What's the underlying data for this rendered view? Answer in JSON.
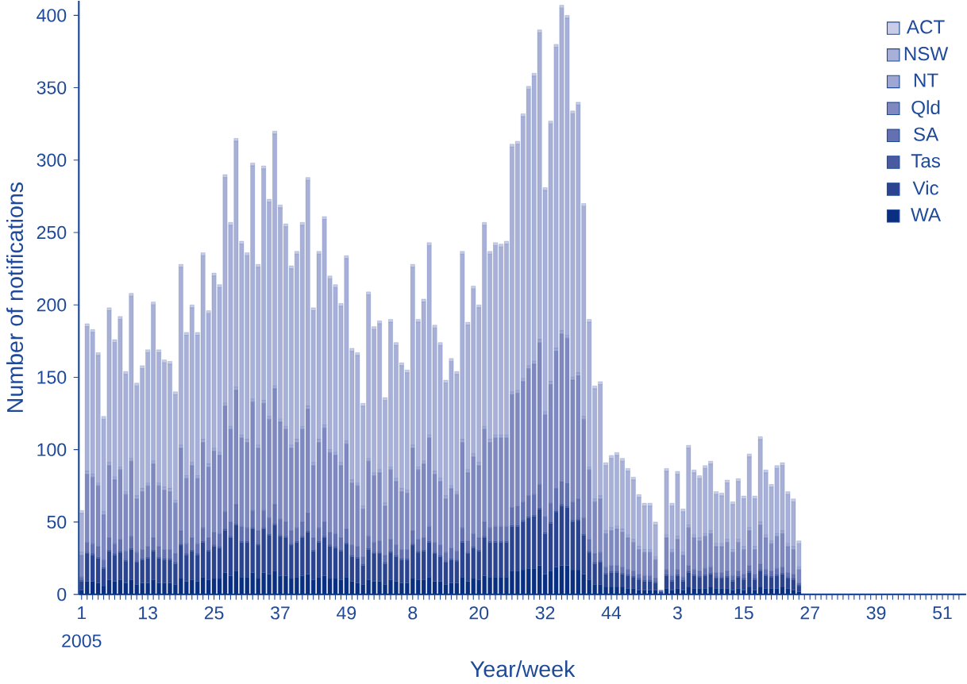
{
  "chart_data": {
    "type": "bar",
    "stacked": true,
    "xlabel": "Year/week",
    "ylabel": "Number of notifications",
    "annotations": [
      "2005"
    ],
    "legend": "top right",
    "ylim": [
      0,
      410
    ],
    "yticks": [
      0,
      50,
      100,
      150,
      200,
      250,
      300,
      350,
      400
    ],
    "categories": [
      "1",
      null,
      null,
      null,
      null,
      null,
      null,
      null,
      null,
      null,
      null,
      null,
      "13",
      null,
      null,
      null,
      null,
      null,
      null,
      null,
      null,
      null,
      null,
      null,
      "25",
      null,
      null,
      null,
      null,
      null,
      null,
      null,
      null,
      null,
      null,
      null,
      "37",
      null,
      null,
      null,
      null,
      null,
      null,
      null,
      null,
      null,
      null,
      null,
      "49",
      null,
      null,
      null,
      null,
      null,
      null,
      null,
      null,
      null,
      null,
      null,
      "8",
      null,
      null,
      null,
      null,
      null,
      null,
      null,
      null,
      null,
      null,
      null,
      "20",
      null,
      null,
      null,
      null,
      null,
      null,
      null,
      null,
      null,
      null,
      null,
      "32",
      null,
      null,
      null,
      null,
      null,
      null,
      null,
      null,
      null,
      null,
      null,
      "44",
      null,
      null,
      null,
      null,
      null,
      null,
      null,
      null,
      null,
      null,
      null,
      "3",
      null,
      null,
      null,
      null,
      null,
      null,
      null,
      null,
      null,
      null,
      null,
      "15",
      null,
      null,
      null,
      null,
      null,
      null,
      null,
      null,
      null,
      null,
      null,
      "27",
      null,
      null,
      null,
      null,
      null,
      null,
      null,
      null,
      null,
      null,
      null,
      "39",
      null,
      null,
      null,
      null,
      null,
      null,
      null,
      null,
      null,
      null,
      null,
      "51",
      null,
      null,
      null
    ],
    "series": [
      {
        "name": "WA",
        "color": "#0a2f80",
        "values": [
          3,
          9,
          9,
          8,
          6,
          10,
          9,
          10,
          8,
          10,
          7,
          8,
          8,
          10,
          8,
          8,
          8,
          7,
          11,
          9,
          10,
          9,
          12,
          10,
          11,
          11,
          15,
          13,
          16,
          12,
          12,
          15,
          11,
          15,
          14,
          16,
          13,
          13,
          11,
          12,
          13,
          14,
          10,
          12,
          13,
          11,
          11,
          10,
          12,
          9,
          8,
          7,
          10,
          9,
          9,
          7,
          10,
          9,
          8,
          8,
          11,
          10,
          10,
          12,
          9,
          9,
          7,
          8,
          8,
          12,
          9,
          11,
          10,
          13,
          12,
          12,
          12,
          12,
          16,
          16,
          17,
          18,
          18,
          20,
          14,
          16,
          19,
          20,
          20,
          17,
          17,
          14,
          10,
          7,
          7,
          5,
          5,
          5,
          5,
          4,
          4,
          3,
          3,
          3,
          3,
          1,
          4,
          3,
          4,
          3,
          5,
          4,
          4,
          4,
          5,
          4,
          4,
          4,
          3,
          4,
          3,
          5,
          3,
          5,
          4,
          4,
          4,
          5,
          4,
          3,
          2,
          null,
          null,
          null,
          null,
          null,
          null,
          null,
          null,
          null,
          null,
          null,
          null,
          null,
          null,
          null,
          null,
          null,
          null,
          null,
          null,
          null,
          null,
          null,
          null,
          null,
          null,
          null,
          null,
          null
        ]
      },
      {
        "name": "Vic",
        "color": "#2c4490",
        "values": [
          6,
          19,
          18,
          17,
          12,
          20,
          18,
          19,
          15,
          21,
          15,
          16,
          17,
          20,
          17,
          16,
          16,
          14,
          23,
          18,
          20,
          18,
          24,
          20,
          22,
          21,
          29,
          26,
          32,
          24,
          24,
          30,
          23,
          30,
          27,
          32,
          27,
          26,
          23,
          24,
          26,
          29,
          20,
          24,
          26,
          22,
          21,
          20,
          23,
          17,
          17,
          13,
          21,
          19,
          19,
          14,
          19,
          17,
          16,
          16,
          23,
          19,
          20,
          24,
          19,
          17,
          15,
          16,
          15,
          24,
          19,
          21,
          20,
          26,
          24,
          24,
          24,
          24,
          31,
          31,
          33,
          35,
          36,
          39,
          28,
          33,
          38,
          41,
          40,
          33,
          34,
          27,
          19,
          14,
          15,
          9,
          10,
          10,
          9,
          9,
          8,
          7,
          6,
          6,
          5,
          1,
          9,
          6,
          9,
          6,
          10,
          9,
          8,
          9,
          9,
          7,
          7,
          8,
          6,
          8,
          7,
          10,
          7,
          11,
          9,
          8,
          9,
          9,
          7,
          7,
          4,
          null,
          null,
          null,
          null,
          null,
          null,
          null,
          null,
          null,
          null,
          null,
          null,
          null,
          null,
          null,
          null,
          null,
          null,
          null,
          null,
          null,
          null,
          null,
          null,
          null,
          null,
          null,
          null,
          null
        ]
      },
      {
        "name": "Tas",
        "color": "#4a5aa0",
        "values": [
          1,
          1,
          1,
          1,
          1,
          1,
          1,
          1,
          1,
          1,
          1,
          1,
          1,
          1,
          1,
          1,
          1,
          1,
          1,
          1,
          1,
          1,
          1,
          1,
          1,
          1,
          1,
          1,
          1,
          1,
          1,
          1,
          1,
          1,
          1,
          1,
          1,
          1,
          1,
          1,
          1,
          1,
          1,
          1,
          1,
          1,
          1,
          1,
          1,
          1,
          1,
          1,
          1,
          1,
          1,
          1,
          1,
          1,
          1,
          1,
          1,
          1,
          1,
          1,
          1,
          1,
          1,
          1,
          1,
          1,
          1,
          1,
          1,
          1,
          1,
          1,
          1,
          1,
          1,
          1,
          1,
          1,
          1,
          1,
          1,
          1,
          1,
          1,
          1,
          1,
          1,
          1,
          1,
          1,
          1,
          1,
          1,
          1,
          1,
          1,
          1,
          1,
          1,
          1,
          1,
          0,
          1,
          1,
          1,
          1,
          1,
          1,
          1,
          1,
          1,
          1,
          1,
          1,
          1,
          1,
          1,
          1,
          1,
          1,
          1,
          1,
          1,
          1,
          1,
          1,
          1,
          null,
          null,
          null,
          null,
          null,
          null,
          null,
          null,
          null,
          null,
          null,
          null,
          null,
          null,
          null,
          null,
          null,
          null,
          null,
          null,
          null,
          null,
          null,
          null,
          null,
          null,
          null,
          null,
          null
        ]
      },
      {
        "name": "SA",
        "color": "#6470b0",
        "values": [
          2,
          7,
          7,
          7,
          5,
          8,
          7,
          8,
          6,
          8,
          6,
          6,
          7,
          8,
          7,
          6,
          6,
          6,
          9,
          7,
          8,
          7,
          9,
          8,
          9,
          9,
          12,
          10,
          13,
          10,
          9,
          12,
          9,
          12,
          11,
          13,
          11,
          10,
          9,
          9,
          10,
          12,
          8,
          9,
          10,
          9,
          9,
          8,
          9,
          7,
          7,
          5,
          8,
          7,
          8,
          5,
          8,
          7,
          6,
          6,
          9,
          8,
          8,
          10,
          7,
          7,
          6,
          7,
          6,
          9,
          8,
          9,
          8,
          10,
          9,
          10,
          10,
          10,
          12,
          13,
          13,
          14,
          14,
          16,
          11,
          13,
          15,
          16,
          16,
          13,
          14,
          11,
          8,
          6,
          6,
          4,
          4,
          4,
          4,
          3,
          3,
          3,
          3,
          3,
          2,
          0,
          3,
          3,
          3,
          2,
          4,
          3,
          3,
          4,
          4,
          3,
          3,
          3,
          3,
          3,
          3,
          4,
          3,
          4,
          3,
          3,
          4,
          4,
          3,
          3,
          1,
          null,
          null,
          null,
          null,
          null,
          null,
          null,
          null,
          null,
          null,
          null,
          null,
          null,
          null,
          null,
          null,
          null,
          null,
          null,
          null,
          null,
          null,
          null,
          null,
          null,
          null,
          null,
          null,
          null
        ]
      },
      {
        "name": "Qld",
        "color": "#8088c0",
        "values": [
          15,
          47,
          46,
          42,
          31,
          50,
          44,
          48,
          39,
          52,
          37,
          40,
          42,
          51,
          42,
          41,
          40,
          35,
          57,
          45,
          50,
          45,
          59,
          49,
          56,
          54,
          73,
          64,
          79,
          61,
          59,
          75,
          57,
          74,
          68,
          80,
          67,
          64,
          57,
          59,
          64,
          72,
          50,
          59,
          65,
          55,
          54,
          50,
          59,
          43,
          42,
          33,
          52,
          46,
          47,
          34,
          48,
          44,
          40,
          39,
          57,
          48,
          51,
          61,
          47,
          44,
          37,
          41,
          39,
          59,
          47,
          53,
          50,
          64,
          59,
          61,
          61,
          61,
          78,
          78,
          83,
          88,
          90,
          98,
          70,
          82,
          95,
          102,
          100,
          84,
          85,
          68,
          48,
          36,
          37,
          23,
          24,
          25,
          24,
          22,
          20,
          17,
          16,
          16,
          13,
          1,
          22,
          16,
          21,
          15,
          26,
          22,
          21,
          22,
          23,
          18,
          18,
          20,
          16,
          20,
          17,
          24,
          17,
          27,
          22,
          19,
          22,
          23,
          18,
          17,
          9,
          null,
          null,
          null,
          null,
          null,
          null,
          null,
          null,
          null,
          null,
          null,
          null,
          null,
          null,
          null,
          null,
          null,
          null,
          null,
          null,
          null,
          null,
          null,
          null,
          null,
          null,
          null,
          null,
          null
        ]
      },
      {
        "name": "NT",
        "color": "#9ea7d3",
        "values": [
          2,
          2,
          2,
          2,
          2,
          2,
          2,
          2,
          2,
          2,
          2,
          2,
          2,
          2,
          2,
          2,
          2,
          2,
          2,
          2,
          2,
          2,
          2,
          2,
          2,
          2,
          2,
          2,
          2,
          2,
          2,
          2,
          2,
          2,
          2,
          2,
          2,
          2,
          2,
          2,
          2,
          2,
          2,
          2,
          2,
          2,
          2,
          2,
          2,
          2,
          2,
          2,
          2,
          2,
          2,
          2,
          2,
          2,
          2,
          2,
          2,
          2,
          2,
          2,
          2,
          2,
          2,
          2,
          2,
          2,
          2,
          2,
          2,
          2,
          2,
          2,
          2,
          2,
          2,
          2,
          2,
          2,
          2,
          2,
          2,
          2,
          2,
          2,
          2,
          2,
          2,
          2,
          2,
          2,
          2,
          2,
          2,
          2,
          2,
          2,
          2,
          2,
          2,
          2,
          2,
          0,
          2,
          2,
          2,
          2,
          2,
          2,
          2,
          2,
          2,
          2,
          2,
          2,
          2,
          2,
          2,
          2,
          2,
          2,
          2,
          2,
          2,
          2,
          2,
          2,
          2,
          null,
          null,
          null,
          null,
          null,
          null,
          null,
          null,
          null,
          null,
          null,
          null,
          null,
          null,
          null,
          null,
          null,
          null,
          null,
          null,
          null,
          null,
          null,
          null,
          null,
          null,
          null,
          null,
          null
        ]
      },
      {
        "name": "NSW",
        "color": "#a9b0d8",
        "values": [
          27,
          100,
          98,
          88,
          64,
          105,
          93,
          102,
          81,
          112,
          76,
          83,
          90,
          108,
          90,
          86,
          86,
          73,
          123,
          97,
          107,
          97,
          127,
          104,
          119,
          114,
          156,
          139,
          170,
          132,
          127,
          161,
          123,
          160,
          148,
          174,
          146,
          138,
          122,
          128,
          139,
          156,
          105,
          128,
          142,
          118,
          114,
          108,
          126,
          89,
          88,
          69,
          113,
          99,
          101,
          71,
          100,
          92,
          85,
          81,
          123,
          100,
          110,
          131,
          99,
          92,
          78,
          86,
          81,
          128,
          100,
          114,
          107,
          139,
          128,
          131,
          130,
          132,
          169,
          170,
          181,
          191,
          197,
          212,
          153,
          178,
          208,
          223,
          219,
          182,
          185,
          145,
          100,
          76,
          77,
          45,
          48,
          49,
          47,
          44,
          41,
          34,
          30,
          30,
          22,
          0,
          44,
          30,
          43,
          28,
          53,
          43,
          41,
          45,
          46,
          34,
          33,
          39,
          31,
          40,
          33,
          49,
          33,
          57,
          43,
          37,
          45,
          45,
          34,
          31,
          16,
          null,
          null,
          null,
          null,
          null,
          null,
          null,
          null,
          null,
          null,
          null,
          null,
          null,
          null,
          null,
          null,
          null,
          null,
          null,
          null,
          null,
          null,
          null,
          null,
          null,
          null,
          null,
          null,
          null
        ]
      },
      {
        "name": "ACT",
        "color": "#c8cce6",
        "values": [
          2,
          2,
          2,
          2,
          2,
          2,
          2,
          2,
          2,
          2,
          2,
          2,
          2,
          2,
          2,
          2,
          2,
          2,
          2,
          2,
          2,
          2,
          2,
          2,
          2,
          2,
          2,
          2,
          2,
          2,
          2,
          2,
          2,
          2,
          2,
          2,
          2,
          2,
          2,
          2,
          2,
          2,
          2,
          2,
          2,
          2,
          2,
          2,
          2,
          2,
          2,
          2,
          2,
          2,
          2,
          2,
          2,
          2,
          2,
          2,
          2,
          2,
          2,
          2,
          2,
          2,
          2,
          2,
          2,
          2,
          2,
          2,
          2,
          2,
          2,
          2,
          2,
          2,
          2,
          2,
          2,
          2,
          2,
          2,
          2,
          2,
          2,
          2,
          2,
          2,
          2,
          2,
          2,
          2,
          2,
          2,
          2,
          2,
          2,
          2,
          2,
          2,
          2,
          2,
          2,
          0,
          2,
          2,
          2,
          2,
          2,
          2,
          2,
          2,
          2,
          2,
          2,
          2,
          2,
          2,
          2,
          2,
          2,
          2,
          2,
          2,
          2,
          2,
          2,
          2,
          2,
          null,
          null,
          null,
          null,
          null,
          null,
          null,
          null,
          null,
          null,
          null,
          null,
          null,
          null,
          null,
          null,
          null,
          null,
          null,
          null,
          null,
          null,
          null,
          null,
          null,
          null,
          null,
          null,
          null
        ]
      }
    ]
  }
}
